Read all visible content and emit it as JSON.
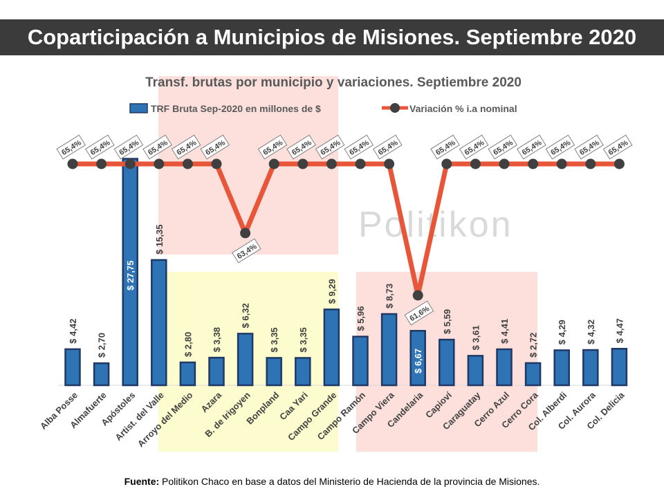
{
  "header": {
    "title": "Coparticipación a Municipios de Misiones. Septiembre 2020"
  },
  "watermark": "Politikon",
  "source": {
    "label": "Fuente:",
    "text": " Politikon Chaco en base a datos del Ministerio de Hacienda de la provincia de Misiones."
  },
  "colors": {
    "bar": "#2e74b5",
    "bar_border": "#1f3864",
    "line": "#e8563a",
    "marker": "#404040",
    "band_red": "#fde0dc",
    "band_yellow": "#fdfcce"
  },
  "chart_data": {
    "type": "bar",
    "title": "Transf. brutas por municipio y variaciones. Septiembre 2020",
    "categories": [
      "Alba Posse",
      "Almafuerte",
      "Apóstoles",
      "Artist. del Valle",
      "Arroyo del Medio",
      "Azara",
      "B. de Irigoyen",
      "Bonpland",
      "Caa Yari",
      "Campo Grande",
      "Campo Ramón",
      "Campo Viera",
      "Candelaria",
      "Capioví",
      "Caraguatay",
      "Cerro Azul",
      "Cerro Cora",
      "Col. Alberdi",
      "Col. Aurora",
      "Col. Delicia"
    ],
    "series": [
      {
        "name": "TRF Bruta Sep-2020 en millones de $",
        "type": "bar",
        "values": [
          4.42,
          2.7,
          27.75,
          15.35,
          2.8,
          3.38,
          6.32,
          3.35,
          3.35,
          9.29,
          5.96,
          8.73,
          6.67,
          5.59,
          3.61,
          4.41,
          2.72,
          4.29,
          4.32,
          4.47
        ],
        "labels": [
          "$ 4,42",
          "$ 2,70",
          "$ 27,75",
          "$ 15,35",
          "$ 2,80",
          "$ 3,38",
          "$ 6,32",
          "$ 3,35",
          "$ 3,35",
          "$ 9,29",
          "$ 5,96",
          "$ 8,73",
          "$ 6,67",
          "$ 5,59",
          "$ 3,61",
          "$ 4,41",
          "$ 2,72",
          "$ 4,29",
          "$ 4,32",
          "$ 4,47"
        ]
      },
      {
        "name": "Variación % i.a nominal",
        "type": "line",
        "values": [
          65.4,
          65.4,
          65.4,
          65.4,
          65.4,
          65.4,
          63.4,
          65.4,
          65.4,
          65.4,
          65.4,
          65.4,
          61.6,
          65.4,
          65.4,
          65.4,
          65.4,
          65.4,
          65.4,
          65.4
        ],
        "labels": [
          "65,4%",
          "65,4%",
          "65,4%",
          "65,4%",
          "65,4%",
          "65,4%",
          "63,4%",
          "65,4%",
          "65,4%",
          "65,4%",
          "65,4%",
          "65,4%",
          "61,6%",
          "65,4%",
          "65,4%",
          "65,4%",
          "65,4%",
          "65,4%",
          "65,4%",
          "65,4%"
        ]
      }
    ],
    "legend_position": "top",
    "grid": false
  }
}
